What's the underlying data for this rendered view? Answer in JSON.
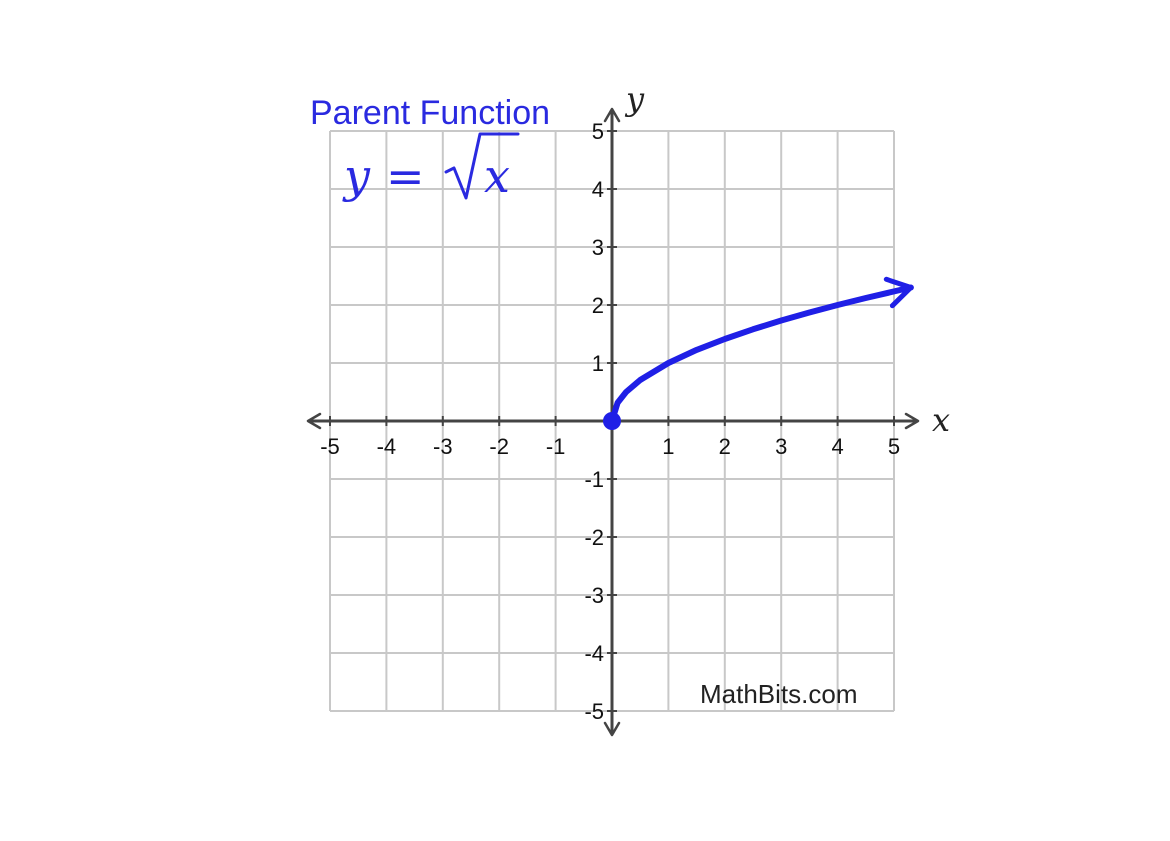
{
  "chart_data": {
    "type": "line",
    "title": "Parent Function",
    "formula": {
      "lhs": "y",
      "equals": "=",
      "radicand": "x"
    },
    "xlabel": "x",
    "ylabel": "y",
    "xlim": [
      -5,
      5
    ],
    "ylim": [
      -5,
      5
    ],
    "x_ticks": [
      -5,
      -4,
      -3,
      -2,
      -1,
      1,
      2,
      3,
      4,
      5
    ],
    "y_ticks": [
      5,
      4,
      3,
      2,
      1,
      -1,
      -2,
      -3,
      -4,
      -5
    ],
    "x_tick_labels": [
      "-5",
      "-4",
      "-3",
      "-2",
      "-1",
      "1",
      "2",
      "3",
      "4",
      "5"
    ],
    "y_tick_labels": [
      "5",
      "4",
      "3",
      "2",
      "1",
      "-1",
      "-2",
      "-3",
      "-4",
      "-5"
    ],
    "grid": true,
    "series": [
      {
        "x": [
          0,
          0.1,
          0.25,
          0.5,
          1,
          1.5,
          2,
          2.5,
          3,
          3.5,
          4,
          4.5,
          5.3
        ],
        "y": [
          0,
          0.316,
          0.5,
          0.707,
          1,
          1.225,
          1.414,
          1.581,
          1.732,
          1.871,
          2,
          2.121,
          2.302
        ],
        "start_point": [
          0,
          0
        ],
        "end_arrow": true,
        "color": "#1f1fe6"
      }
    ],
    "credit": "MathBits.com"
  },
  "colors": {
    "curve": "#1f1fe6",
    "text_accent": "#2a2ae0",
    "grid": "#c8c8c8",
    "axis": "#444444"
  }
}
